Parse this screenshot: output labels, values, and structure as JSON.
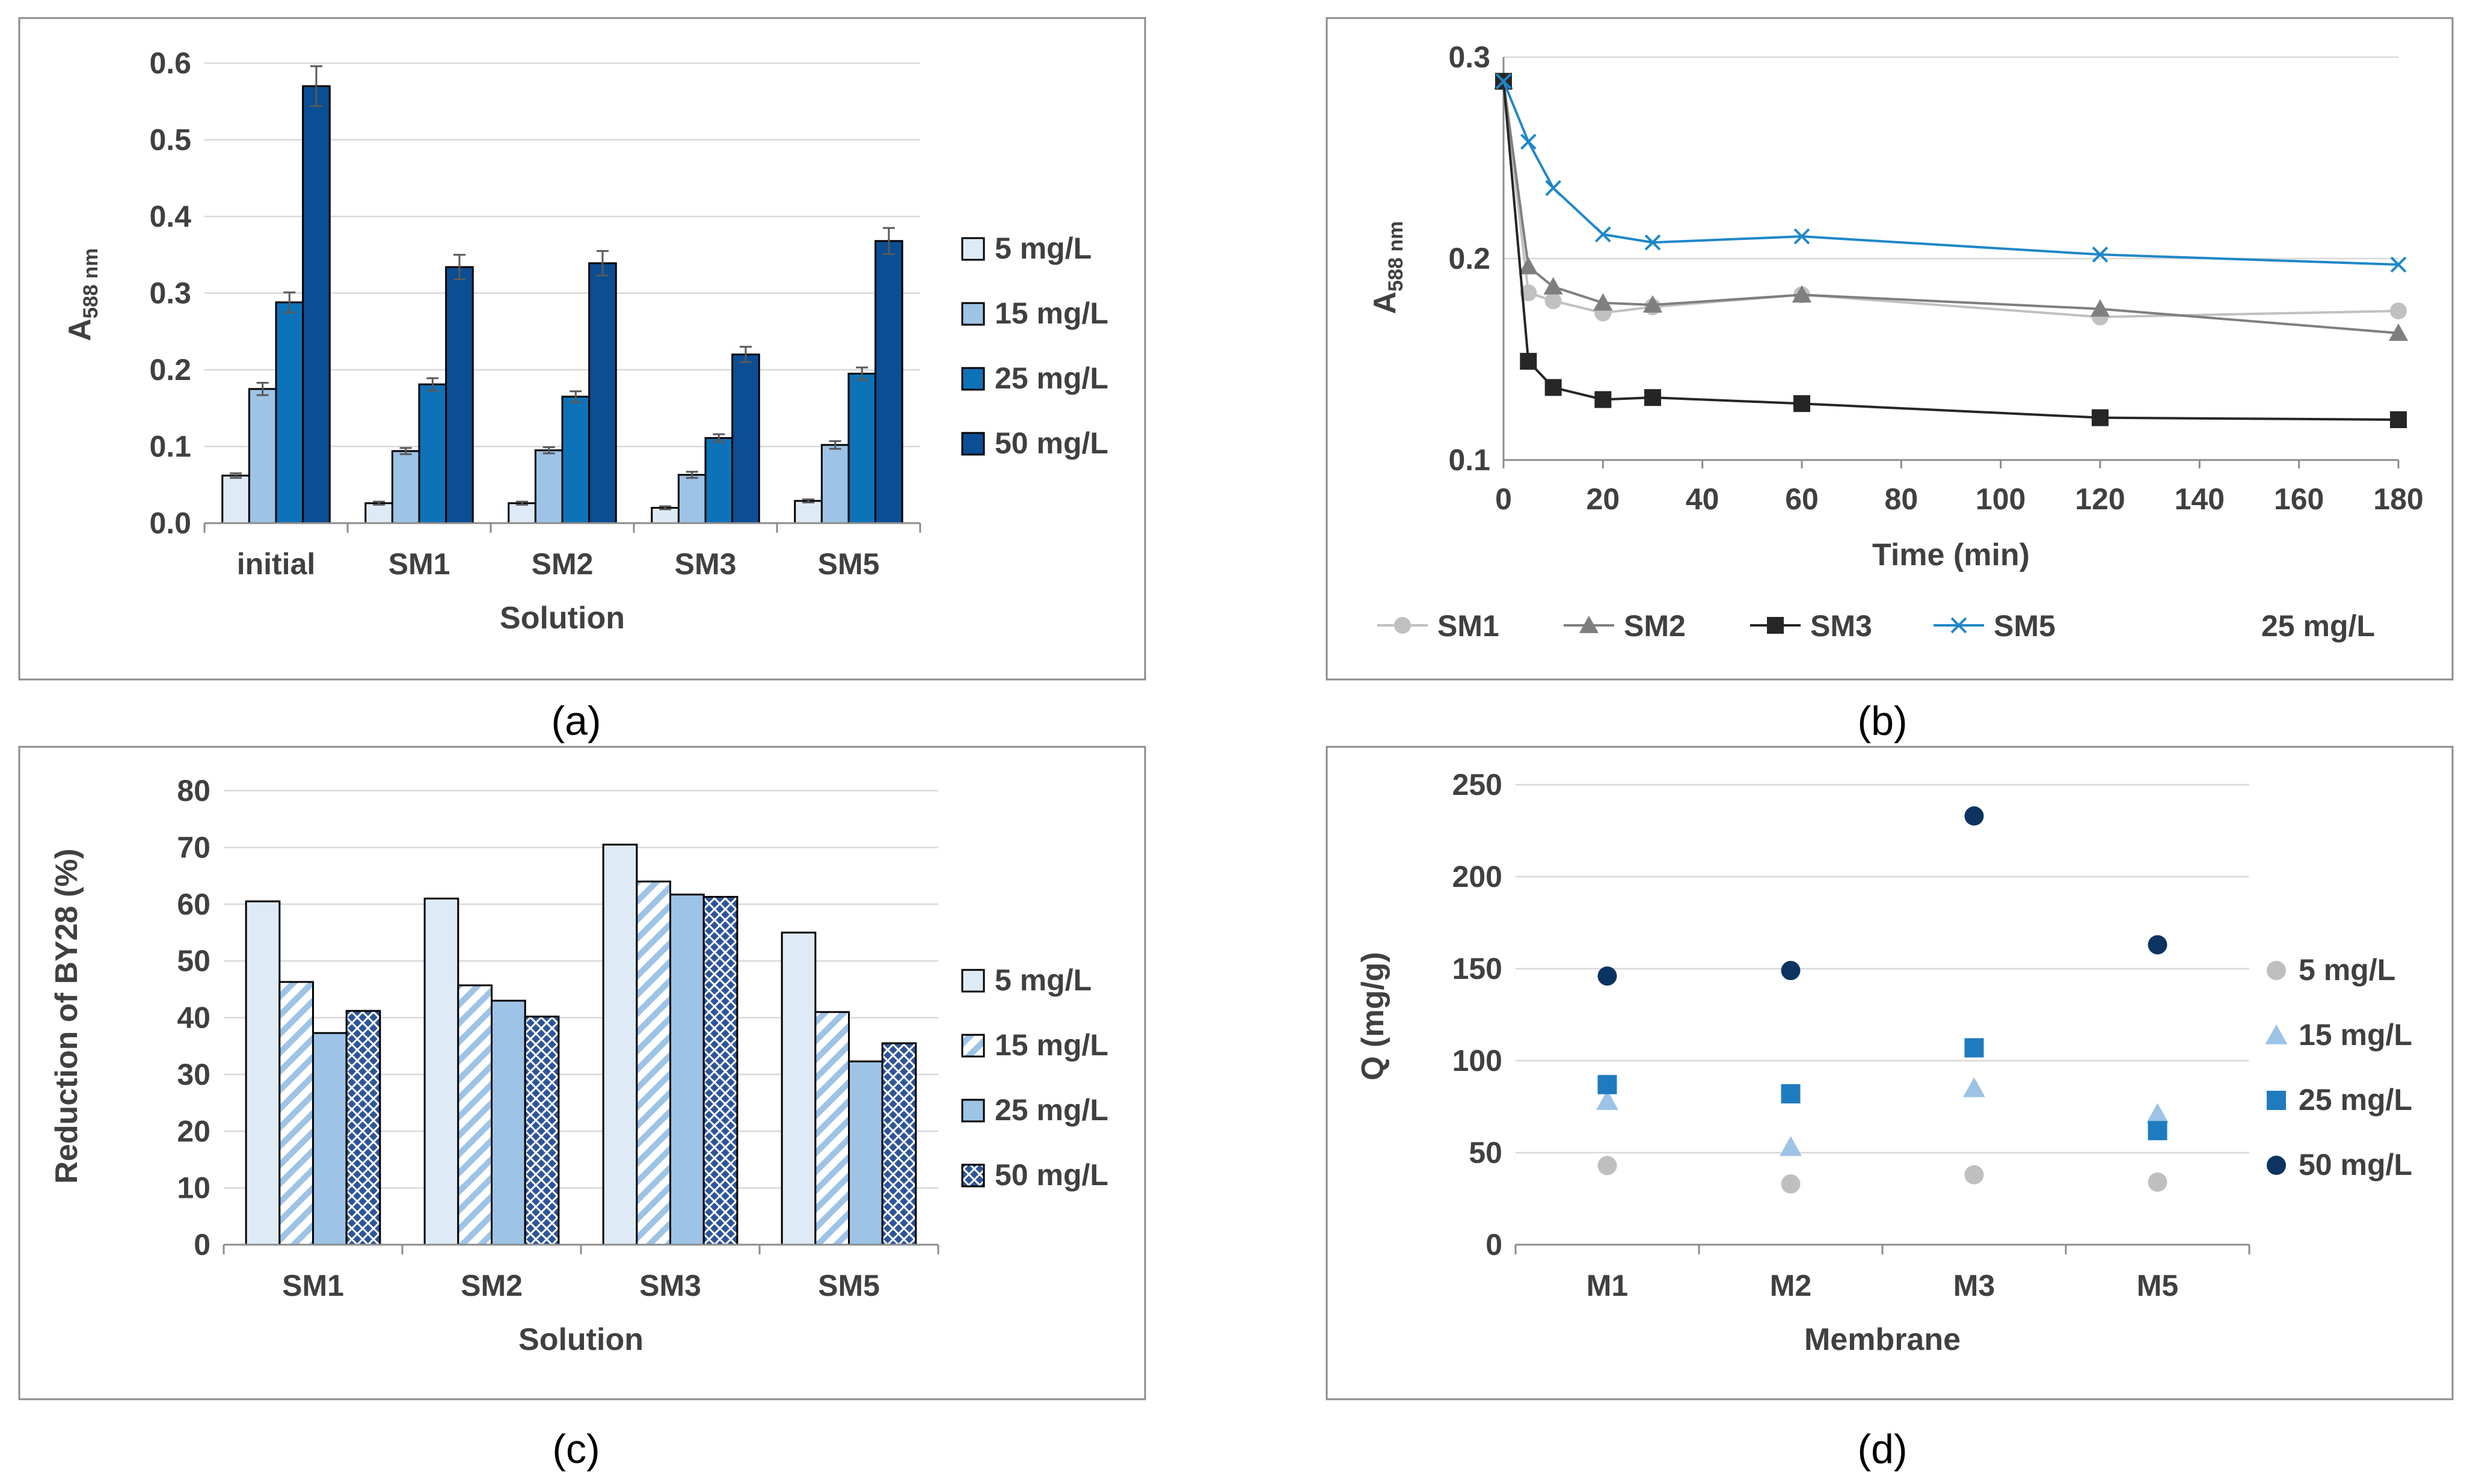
{
  "chart_data": [
    {
      "id": "a",
      "type": "bar",
      "caption": "(a)",
      "title": "",
      "xlabel": "Solution",
      "ylabel": "A",
      "ylabel_sub": "588 nm",
      "ylim": [
        0,
        0.6
      ],
      "yticks": [
        "0.0",
        "0.1",
        "0.2",
        "0.3",
        "0.4",
        "0.5",
        "0.6"
      ],
      "categories": [
        "initial",
        "SM1",
        "SM2",
        "SM3",
        "SM5"
      ],
      "series": [
        {
          "name": "5 mg/L",
          "color": "#deebf7",
          "values": [
            0.062,
            0.026,
            0.026,
            0.02,
            0.029
          ],
          "errors": [
            0.003,
            0.002,
            0.002,
            0.002,
            0.002
          ]
        },
        {
          "name": "15 mg/L",
          "color": "#9dc3e6",
          "values": [
            0.175,
            0.094,
            0.095,
            0.063,
            0.102
          ],
          "errors": [
            0.008,
            0.004,
            0.004,
            0.004,
            0.005
          ]
        },
        {
          "name": "25 mg/L",
          "color": "#0d73b8",
          "values": [
            0.288,
            0.181,
            0.165,
            0.111,
            0.195
          ],
          "errors": [
            0.013,
            0.008,
            0.007,
            0.005,
            0.008
          ]
        },
        {
          "name": "50 mg/L",
          "color": "#0b4e93",
          "values": [
            0.57,
            0.334,
            0.339,
            0.22,
            0.368
          ],
          "errors": [
            0.026,
            0.016,
            0.016,
            0.01,
            0.017
          ]
        }
      ]
    },
    {
      "id": "b",
      "type": "line",
      "caption": "(b)",
      "xlabel": "Time (min)",
      "ylabel": "A",
      "ylabel_sub": "588 nm",
      "xlim": [
        0,
        180
      ],
      "ylim": [
        0.1,
        0.3
      ],
      "xticks": [
        "0",
        "20",
        "40",
        "60",
        "80",
        "100",
        "120",
        "140",
        "160",
        "180"
      ],
      "yticks": [
        "0.1",
        "0.2",
        "0.3"
      ],
      "annotation": "25 mg/L",
      "x": [
        0,
        5,
        10,
        20,
        30,
        60,
        120,
        180
      ],
      "series": [
        {
          "name": "SM1",
          "color": "#c0c0c0",
          "marker": "circle",
          "values": [
            0.288,
            0.183,
            0.179,
            0.173,
            0.176,
            0.182,
            0.171,
            0.174
          ]
        },
        {
          "name": "SM2",
          "color": "#7f7f7f",
          "marker": "triangle",
          "values": [
            0.288,
            0.196,
            0.186,
            0.178,
            0.177,
            0.182,
            0.175,
            0.163
          ]
        },
        {
          "name": "SM3",
          "color": "#262626",
          "marker": "square",
          "values": [
            0.288,
            0.149,
            0.136,
            0.13,
            0.131,
            0.128,
            0.121,
            0.12
          ]
        },
        {
          "name": "SM5",
          "color": "#1f87c8",
          "marker": "x",
          "values": [
            0.288,
            0.258,
            0.235,
            0.212,
            0.208,
            0.211,
            0.202,
            0.197
          ]
        }
      ]
    },
    {
      "id": "c",
      "type": "bar",
      "caption": "(c)",
      "xlabel": "Solution",
      "ylabel": "Reduction of BY28 (%)",
      "ylim": [
        0,
        80
      ],
      "yticks": [
        "0",
        "10",
        "20",
        "30",
        "40",
        "50",
        "60",
        "70",
        "80"
      ],
      "categories": [
        "SM1",
        "SM2",
        "SM3",
        "SM5"
      ],
      "series": [
        {
          "name": "5 mg/L",
          "color": "#deebf7",
          "pattern": "solid",
          "values": [
            60.5,
            61.0,
            70.5,
            55.0
          ]
        },
        {
          "name": "15 mg/L",
          "color": "#9dc3e6",
          "pattern": "diagonal",
          "values": [
            46.3,
            45.7,
            64.0,
            41.0
          ]
        },
        {
          "name": "25 mg/L",
          "color": "#9dc3e6",
          "pattern": "solid",
          "values": [
            37.3,
            43.0,
            61.7,
            32.3
          ]
        },
        {
          "name": "50 mg/L",
          "color": "#2e5597",
          "pattern": "crosshatch",
          "values": [
            41.2,
            40.2,
            61.3,
            35.5
          ]
        }
      ]
    },
    {
      "id": "d",
      "type": "scatter",
      "caption": "(d)",
      "xlabel": "Membrane",
      "ylabel": "Q (mg/g)",
      "ylim": [
        0,
        250
      ],
      "yticks": [
        "0",
        "50",
        "100",
        "150",
        "200",
        "250"
      ],
      "categories": [
        "M1",
        "M2",
        "M3",
        "M5"
      ],
      "series": [
        {
          "name": "5 mg/L",
          "color": "#bfbfbf",
          "marker": "circle",
          "values": [
            43,
            33,
            38,
            34
          ]
        },
        {
          "name": "15 mg/L",
          "color": "#9dc3e6",
          "marker": "triangle",
          "values": [
            78,
            53,
            85,
            71
          ]
        },
        {
          "name": "25 mg/L",
          "color": "#1f7bbf",
          "marker": "square",
          "values": [
            87,
            82,
            107,
            62
          ]
        },
        {
          "name": "50 mg/L",
          "color": "#0d3460",
          "marker": "circle",
          "values": [
            146,
            149,
            233,
            163
          ]
        }
      ]
    }
  ]
}
